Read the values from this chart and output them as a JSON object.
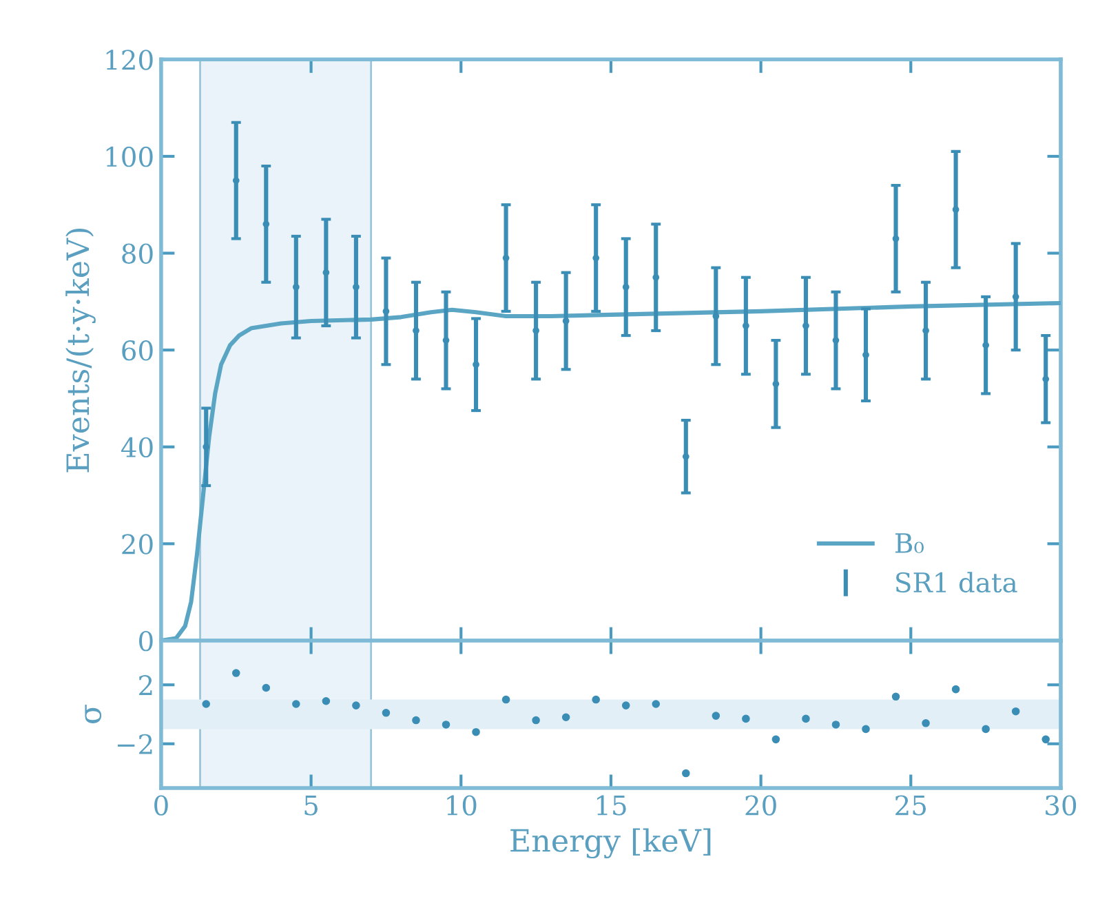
{
  "chart_data": [
    {
      "type": "scatter",
      "ylabel": "Events/(t·y·keV)",
      "xlim": [
        0,
        30
      ],
      "xticks": [
        0,
        5,
        10,
        15,
        20,
        25,
        30
      ],
      "ylim": [
        0,
        120
      ],
      "yticks": [
        0,
        20,
        40,
        60,
        80,
        100,
        120
      ],
      "tick_labels": "y",
      "grid": false,
      "legend": "bottom right",
      "bands": [
        {
          "axis": "x",
          "from": 1.3,
          "to": 7.0,
          "color": "#e9f3f9"
        }
      ],
      "series": [
        {
          "name": "B₀",
          "type": "line",
          "color": "#5aa5c4",
          "line_style": "solid",
          "marker": "none",
          "x": [
            0,
            0.5,
            0.8,
            1.0,
            1.2,
            1.4,
            1.6,
            1.8,
            2.0,
            2.3,
            2.6,
            3,
            4,
            5,
            7,
            8,
            9,
            9.7,
            10.5,
            11.5,
            13,
            15,
            20,
            25,
            30
          ],
          "values": [
            0,
            0.5,
            3,
            8,
            18,
            30,
            42,
            51,
            57,
            61,
            63,
            64.5,
            65.5,
            66,
            66.3,
            66.8,
            67.8,
            68.3,
            67.8,
            67,
            67,
            67.3,
            68,
            69,
            69.7
          ]
        },
        {
          "name": "SR1 data",
          "color": "#3a8db5",
          "marker": "circle",
          "x": [
            1.5,
            2.5,
            3.5,
            4.5,
            5.5,
            6.5,
            7.5,
            8.5,
            9.5,
            10.5,
            11.5,
            12.5,
            13.5,
            14.5,
            15.5,
            16.5,
            17.5,
            18.5,
            19.5,
            20.5,
            21.5,
            22.5,
            23.5,
            24.5,
            25.5,
            26.5,
            27.5,
            28.5,
            29.5
          ],
          "values": [
            40,
            95,
            86,
            73,
            76,
            73,
            68,
            64,
            62,
            57,
            79,
            64,
            66,
            79,
            73,
            75,
            38,
            67,
            65,
            53,
            65,
            62,
            59,
            83,
            64,
            89,
            61,
            71,
            54
          ],
          "errors": [
            8,
            12,
            12,
            10.5,
            11,
            10.5,
            11,
            10,
            10,
            9.5,
            11,
            10,
            10,
            11,
            10,
            11,
            7.5,
            10,
            10,
            9,
            10,
            10,
            9.5,
            11,
            10,
            12,
            10,
            11,
            9
          ]
        }
      ]
    },
    {
      "type": "scatter",
      "xlabel": "Energy [keV]",
      "ylabel": "σ",
      "xlim": [
        0,
        30
      ],
      "xticks": [
        0,
        5,
        10,
        15,
        20,
        25,
        30
      ],
      "ylim": [
        -5,
        5
      ],
      "yticks": [
        {
          "value": -2,
          "label": "−2"
        },
        2
      ],
      "grid": false,
      "legend": false,
      "bands": [
        {
          "axis": "x",
          "from": 1.3,
          "to": 7.0,
          "color": "#e9f3f9"
        },
        {
          "axis": "y",
          "from": -1,
          "to": 1,
          "color": "#e3eff6"
        }
      ],
      "series": [
        {
          "color": "#3a8db5",
          "marker": "circle",
          "x": [
            1.5,
            2.5,
            3.5,
            4.5,
            5.5,
            6.5,
            7.5,
            8.5,
            9.5,
            10.5,
            11.5,
            12.5,
            13.5,
            14.5,
            15.5,
            16.5,
            17.5,
            18.5,
            19.5,
            20.5,
            21.5,
            22.5,
            23.5,
            24.5,
            25.5,
            26.5,
            27.5,
            28.5,
            29.5
          ],
          "values": [
            0.7,
            2.8,
            1.8,
            0.7,
            0.9,
            0.6,
            0.1,
            -0.4,
            -0.7,
            -1.2,
            1.0,
            -0.4,
            -0.2,
            1.0,
            0.6,
            0.7,
            -4.0,
            -0.1,
            -0.3,
            -1.7,
            -0.3,
            -0.7,
            -1.0,
            1.2,
            -0.6,
            1.7,
            -1.0,
            0.2,
            -1.7
          ]
        }
      ]
    }
  ]
}
